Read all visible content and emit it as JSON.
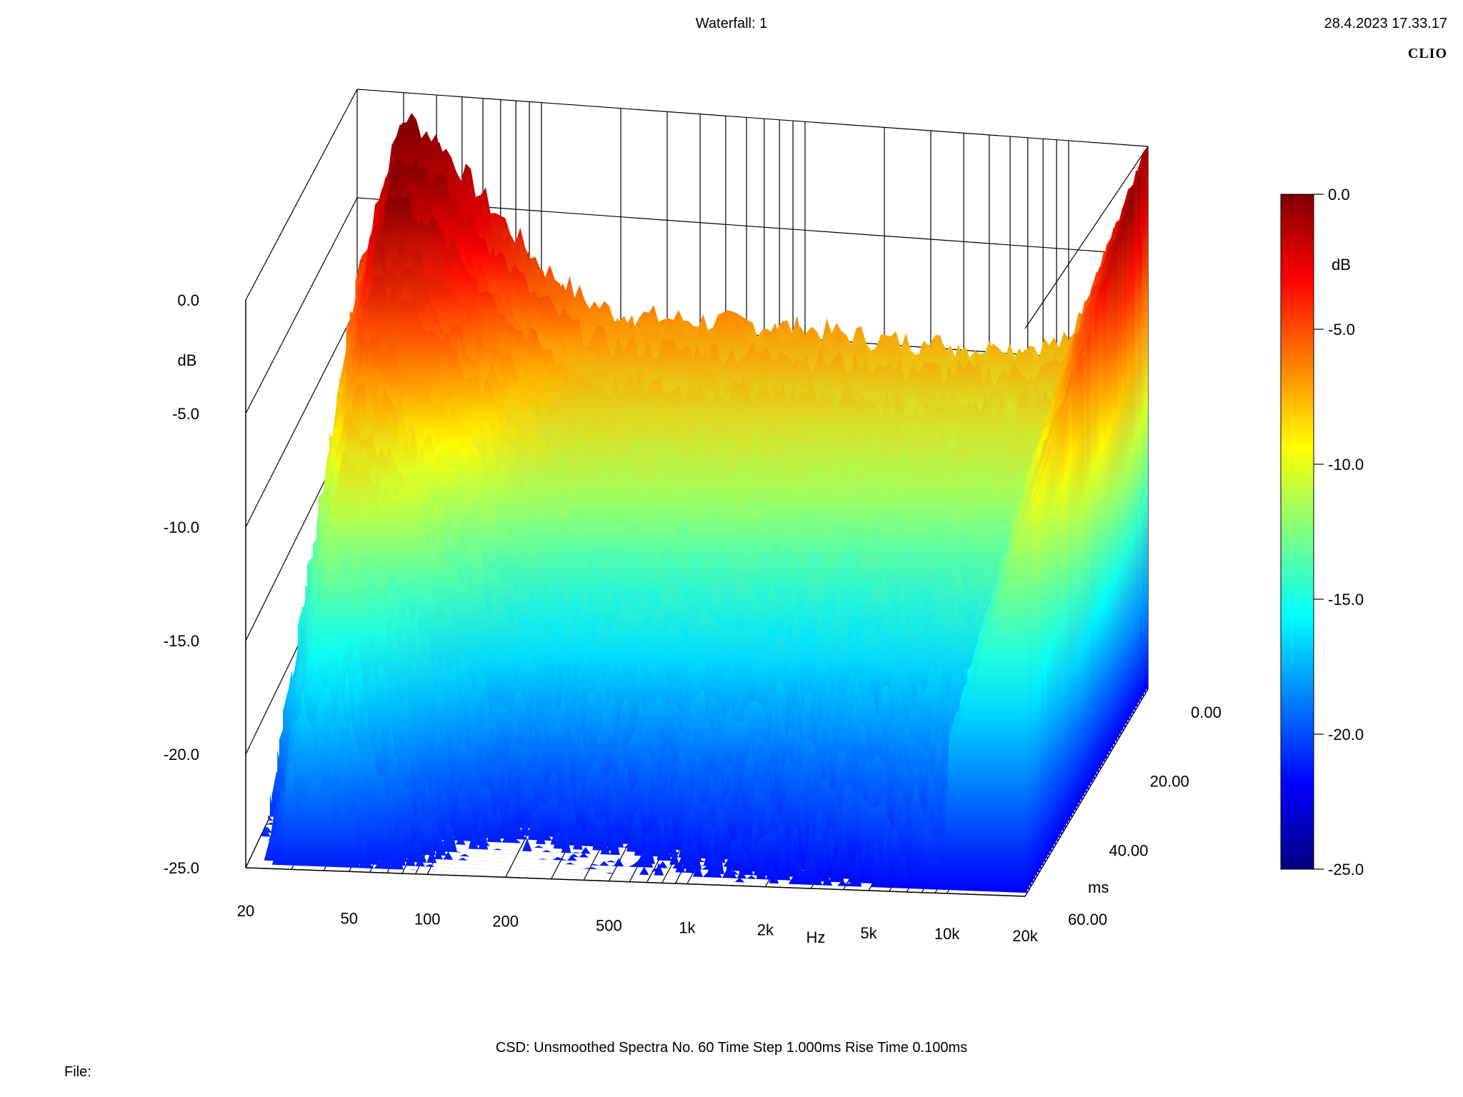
{
  "header": {
    "title": "Waterfall: 1",
    "timestamp": "28.4.2023 17.33.17",
    "brand": "CLIO"
  },
  "footer": {
    "info": "CSD:   Unsmoothed   Spectra No. 60   Time Step 1.000ms   Rise Time 0.100ms",
    "file_label": "File:"
  },
  "chart_data": {
    "type": "waterfall",
    "title": "Waterfall: 1",
    "x_axis": {
      "label": "Hz",
      "scale": "log",
      "range": [
        20,
        20000
      ],
      "ticks": [
        "20",
        "50",
        "100",
        "200",
        "500",
        "1k",
        "2k",
        "5k",
        "10k",
        "20k"
      ]
    },
    "y_axis": {
      "label": "dB",
      "range": [
        -25,
        0
      ],
      "ticks": [
        "0.0",
        "-5.0",
        "-10.0",
        "-15.0",
        "-20.0",
        "-25.0"
      ]
    },
    "z_axis": {
      "label": "ms",
      "range": [
        0,
        60
      ],
      "ticks": [
        "0.00",
        "20.00",
        "40.00",
        "60.00"
      ]
    },
    "colorbar": {
      "label": "dB",
      "range": [
        -25,
        0
      ],
      "ticks": [
        "0.0",
        "-5.0",
        "-10.0",
        "-15.0",
        "-20.0",
        "-25.0"
      ],
      "colors": [
        "#00007f",
        "#0000ff",
        "#007fff",
        "#00ffff",
        "#7fff7f",
        "#ffff00",
        "#ff7f00",
        "#ff0000",
        "#7f0000"
      ]
    },
    "spectra_count": 60,
    "time_step_ms": 1.0,
    "rise_time_ms": 0.1,
    "front_slice_db": [
      {
        "hz": 20,
        "db": -8.5
      },
      {
        "hz": 30,
        "db": -1.0
      },
      {
        "hz": 40,
        "db": -2.0
      },
      {
        "hz": 60,
        "db": -4.5
      },
      {
        "hz": 100,
        "db": -7.5
      },
      {
        "hz": 150,
        "db": -9.0
      },
      {
        "hz": 200,
        "db": -9.5
      },
      {
        "hz": 500,
        "db": -9.5
      },
      {
        "hz": 1000,
        "db": -9.5
      },
      {
        "hz": 2000,
        "db": -9.8
      },
      {
        "hz": 5000,
        "db": -9.8
      },
      {
        "hz": 10000,
        "db": -9.3
      },
      {
        "hz": 12000,
        "db": -7.0
      },
      {
        "hz": 15000,
        "db": -4.0
      },
      {
        "hz": 20000,
        "db": 0.0
      }
    ],
    "decay_db_per_ms": 0.22
  }
}
